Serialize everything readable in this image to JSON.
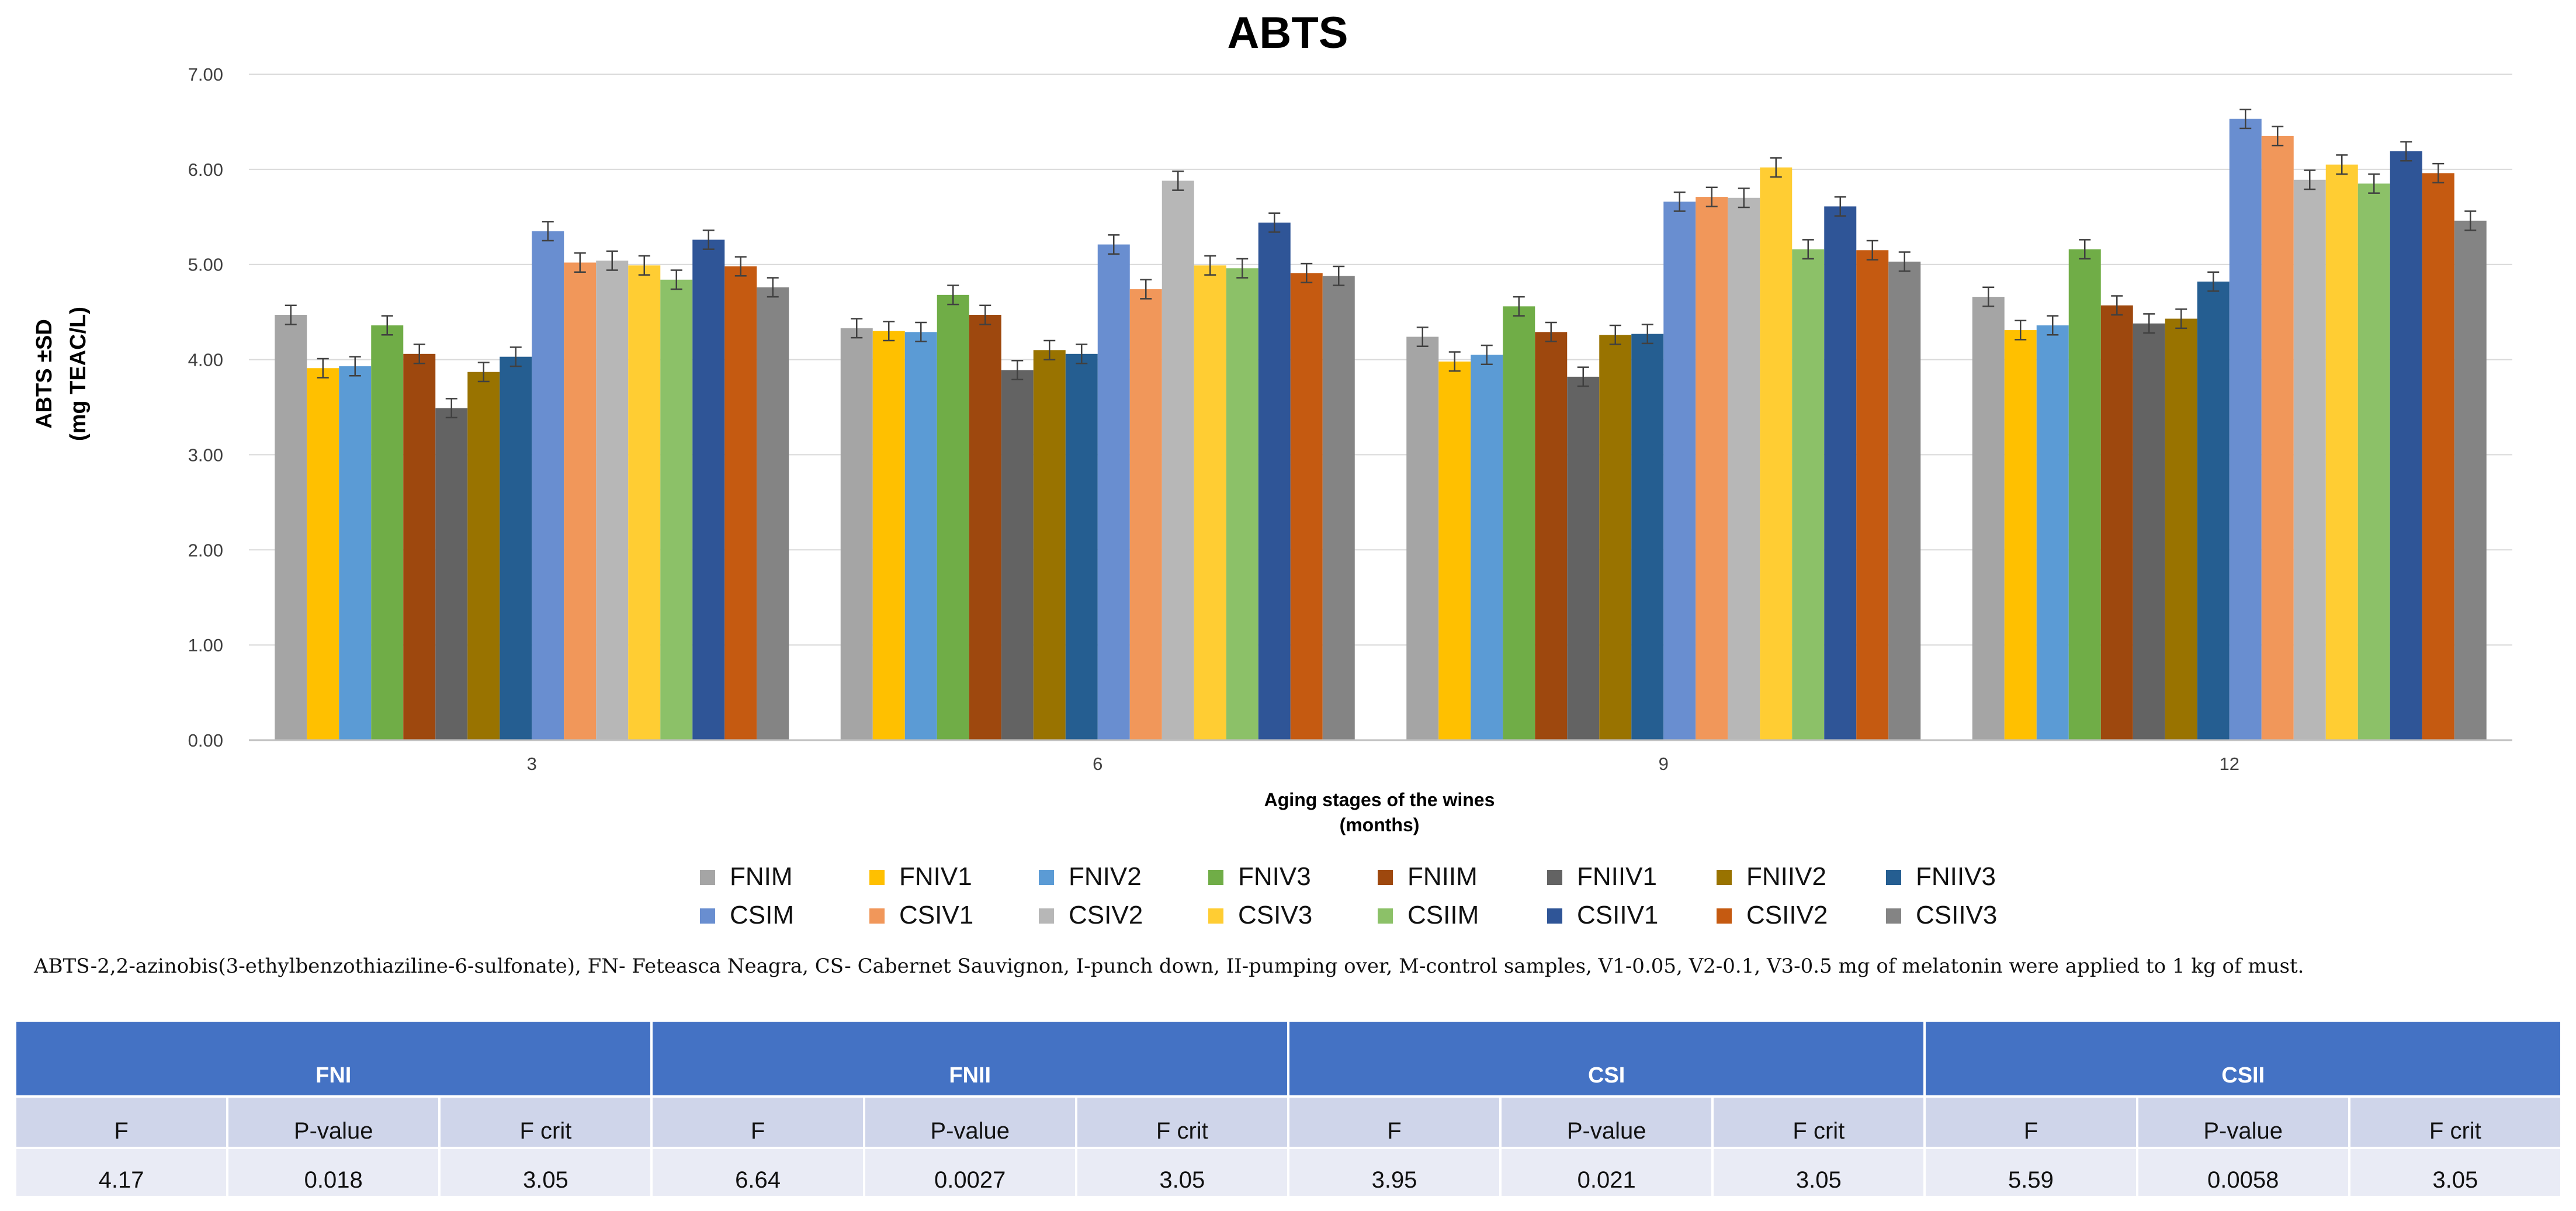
{
  "chart_data": {
    "type": "bar",
    "title": "ABTS",
    "ylabel_line1": "ABTS ±SD",
    "ylabel_line2": "(mg TEAC/L)",
    "xlabel_line1": "Aging stages of the wines",
    "xlabel_line2": "(months)",
    "ylim": [
      0,
      7
    ],
    "yticks": [
      "0.00",
      "1.00",
      "2.00",
      "3.00",
      "4.00",
      "5.00",
      "6.00",
      "7.00"
    ],
    "grid": true,
    "legend_position": "bottom",
    "categories": [
      "3",
      "6",
      "9",
      "12"
    ],
    "series": [
      {
        "name": "FNIM",
        "color": "#a5a5a5",
        "values": [
          4.47,
          4.33,
          4.24,
          4.66
        ]
      },
      {
        "name": "FNIV1",
        "color": "#ffc000",
        "values": [
          3.91,
          4.3,
          3.98,
          4.31
        ]
      },
      {
        "name": "FNIV2",
        "color": "#5b9bd5",
        "values": [
          3.93,
          4.29,
          4.05,
          4.36
        ]
      },
      {
        "name": "FNIV3",
        "color": "#70ad47",
        "values": [
          4.36,
          4.68,
          4.56,
          5.16
        ]
      },
      {
        "name": "FNIIM",
        "color": "#9e480e",
        "values": [
          4.06,
          4.47,
          4.29,
          4.57
        ]
      },
      {
        "name": "FNIIV1",
        "color": "#636363",
        "values": [
          3.49,
          3.89,
          3.82,
          4.38
        ]
      },
      {
        "name": "FNIIV2",
        "color": "#997300",
        "values": [
          3.87,
          4.1,
          4.26,
          4.43
        ]
      },
      {
        "name": "FNIIV3",
        "color": "#255e91",
        "values": [
          4.03,
          4.06,
          4.27,
          4.82
        ]
      },
      {
        "name": "CSIM",
        "color": "#698ed0",
        "values": [
          5.35,
          5.21,
          5.66,
          6.53
        ]
      },
      {
        "name": "CSIV1",
        "color": "#f1975a",
        "values": [
          5.02,
          4.74,
          5.71,
          6.35
        ]
      },
      {
        "name": "CSIV2",
        "color": "#b7b7b7",
        "values": [
          5.04,
          5.88,
          5.7,
          5.89
        ]
      },
      {
        "name": "CSIV3",
        "color": "#ffcd33",
        "values": [
          4.99,
          4.99,
          6.02,
          6.05
        ]
      },
      {
        "name": "CSIIM",
        "color": "#8cc168",
        "values": [
          4.84,
          4.96,
          5.16,
          5.85
        ]
      },
      {
        "name": "CSIIV1",
        "color": "#2f5597",
        "values": [
          5.26,
          5.44,
          5.61,
          6.19
        ]
      },
      {
        "name": "CSIIV2",
        "color": "#c55a11",
        "values": [
          4.98,
          4.91,
          5.15,
          5.96
        ]
      },
      {
        "name": "CSIIV3",
        "color": "#848484",
        "values": [
          4.76,
          4.88,
          5.03,
          5.46
        ]
      }
    ],
    "error": [
      0.1,
      0.1,
      0.1,
      0.1
    ]
  },
  "footnote": "ABTS-2,2-azinobis(3-ethylbenzothiaziline-6-sulfonate), FN- Feteasca Neagra, CS- Cabernet Sauvignon, I-punch down, II-pumping over, M-control samples, V1-0.05, V2-0.1, V3-0.5 mg of melatonin were applied to 1 kg of must.",
  "table": {
    "groups": [
      "FNI",
      "FNII",
      "CSI",
      "CSII"
    ],
    "columns": [
      "F",
      "P-value",
      "F crit"
    ],
    "rows": [
      [
        "4.17",
        "0.018",
        "3.05"
      ],
      [
        "6.64",
        "0.0027",
        "3.05"
      ],
      [
        "3.95",
        "0.021",
        "3.05"
      ],
      [
        "5.59",
        "0.0058",
        "3.05"
      ]
    ]
  }
}
